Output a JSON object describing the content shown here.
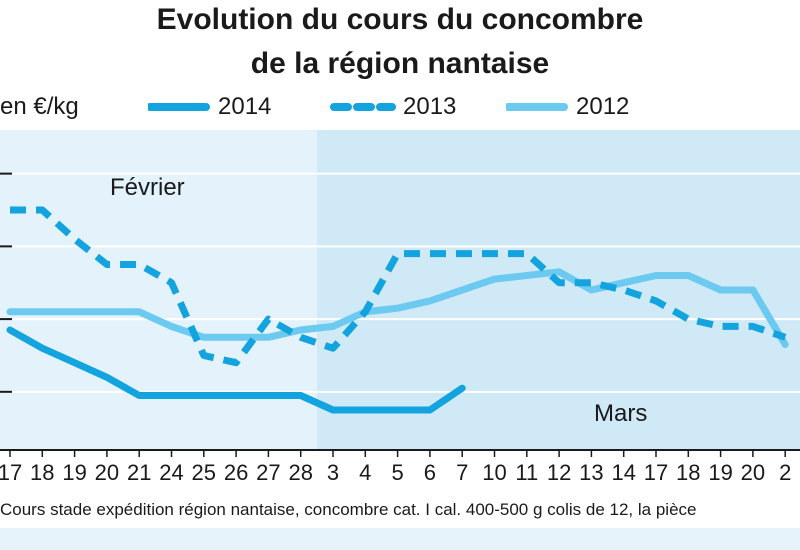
{
  "header": {
    "title_line1": "Evolution du cours du concombre",
    "title_line2": "de la région nantaise",
    "unit": "en €/kg"
  },
  "footnote": "Cours stade expédition région nantaise, concombre cat. I cal. 400-500 g colis de 12, la pièce",
  "colors": {
    "series_2014": "#13a3df",
    "series_2013": "#13a3df",
    "series_2012": "#6cc9ef",
    "panel_fevrier": "#e3f2fb",
    "panel_mars": "#cfe9f7",
    "gridline": "#ffffff"
  },
  "chart_data": {
    "type": "line",
    "title": "Evolution du cours du concombre de la région nantaise",
    "ylabel": "en €/kg",
    "grid": true,
    "legend_position": "top",
    "x": [
      "17",
      "18",
      "19",
      "20",
      "21",
      "24",
      "25",
      "26",
      "27",
      "28",
      "3",
      "4",
      "5",
      "6",
      "7",
      "10",
      "11",
      "12",
      "13",
      "14",
      "17",
      "18",
      "19",
      "20",
      "2"
    ],
    "month_labels": [
      {
        "label": "Février",
        "segment": "x 17 to 28"
      },
      {
        "label": "Mars",
        "segment": "x 3 to 2"
      }
    ],
    "series": [
      {
        "name": "2014",
        "style": "solid",
        "values": [
          0.57,
          0.52,
          0.48,
          0.44,
          0.39,
          0.39,
          0.39,
          0.39,
          0.39,
          0.39,
          0.35,
          0.35,
          0.35,
          0.35,
          0.41,
          null,
          null,
          null,
          null,
          null,
          null,
          null,
          null,
          null,
          null
        ]
      },
      {
        "name": "2013",
        "style": "dashed",
        "values": [
          0.9,
          0.9,
          0.82,
          0.75,
          0.75,
          0.7,
          0.5,
          0.48,
          0.6,
          0.55,
          0.52,
          0.62,
          0.78,
          0.78,
          0.78,
          0.78,
          0.78,
          0.7,
          0.7,
          0.68,
          0.65,
          0.6,
          0.58,
          0.58,
          0.55
        ]
      },
      {
        "name": "2012",
        "style": "solid-light",
        "values": [
          0.62,
          0.62,
          0.62,
          0.62,
          0.62,
          0.58,
          0.55,
          0.55,
          0.55,
          0.57,
          0.58,
          0.62,
          0.63,
          0.65,
          0.68,
          0.71,
          0.72,
          0.73,
          0.68,
          0.7,
          0.72,
          0.72,
          0.68,
          0.68,
          0.53
        ]
      }
    ],
    "ylim": [
      0.24,
      1.12
    ]
  }
}
